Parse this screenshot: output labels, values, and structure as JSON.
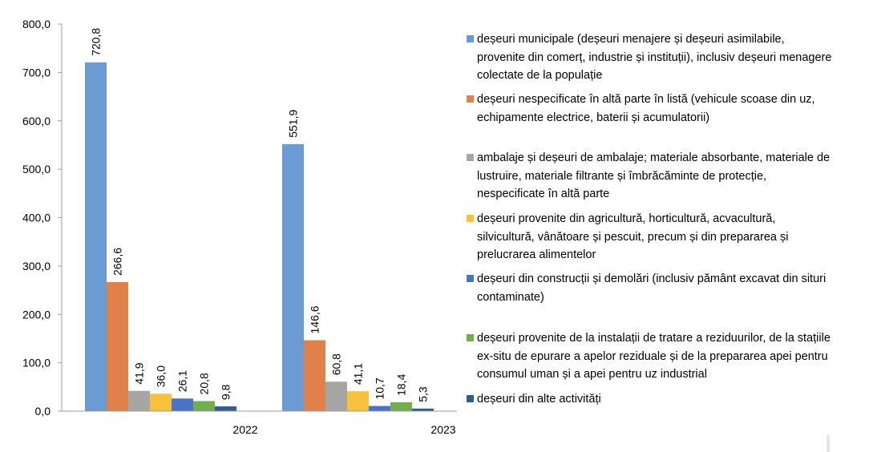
{
  "chart_data": {
    "type": "bar",
    "categories": [
      "2022",
      "2023"
    ],
    "ylim": [
      0,
      800
    ],
    "yticks": [
      "0,0",
      "100,0",
      "200,0",
      "300,0",
      "400,0",
      "500,0",
      "600,0",
      "700,0",
      "800,0"
    ],
    "grid": false,
    "legend_position": "right",
    "series": [
      {
        "name": "deșeuri municipale (deșeuri menajere și deșeuri asimilabile, provenite din comerț, industrie și instituții), inclusiv deșeuri menagere colectate de la populație",
        "color": "#6A9BD3",
        "values": [
          720.8,
          551.9
        ],
        "labels": [
          "720,8",
          "551,9"
        ]
      },
      {
        "name": "deșeuri nespecificate în altă parte în listă (vehicule scoase din uz, echipamente electrice, baterii și acumulatorii)",
        "color": "#E0804A",
        "values": [
          266.6,
          146.6
        ],
        "labels": [
          "266,6",
          "146,6"
        ]
      },
      {
        "name": "ambalaje și deșeuri de ambalaje; materiale absorbante, materiale de lustruire, materiale filtrante și îmbrăcăminte de protecție, nespecificate în altă parte",
        "color": "#A6A6A6",
        "values": [
          41.9,
          60.8
        ],
        "labels": [
          "41,9",
          "60,8"
        ]
      },
      {
        "name": "deșeuri provenite din agricultură, horticultură, acvacultură, silvicultură, vânătoare și pescuit, precum și din prepararea și prelucrarea alimentelor",
        "color": "#F7C13C",
        "values": [
          36.0,
          41.1
        ],
        "labels": [
          "36,0",
          "41,1"
        ]
      },
      {
        "name": "deșeuri din construcții și demolări (inclusiv pământ excavat din situri contaminate)",
        "color": "#4A72C6",
        "values": [
          26.1,
          10.7
        ],
        "labels": [
          "26,1",
          "10,7"
        ]
      },
      {
        "name": "deșeuri provenite de la instalații de tratare a reziduurilor, de la stațiile ex-situ de epurare a apelor reziduale și de la prepararea apei pentru consumul uman și a apei pentru uz industrial",
        "color": "#72AE4F",
        "values": [
          20.8,
          18.4
        ],
        "labels": [
          "20,8",
          "18,4"
        ]
      },
      {
        "name": "deșeuri din alte activități",
        "color": "#2E5C97",
        "values": [
          9.8,
          5.3
        ],
        "labels": [
          "9,8",
          "5,3"
        ]
      }
    ]
  }
}
